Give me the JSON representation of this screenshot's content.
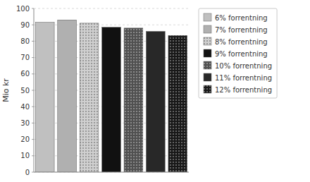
{
  "chart_data": {
    "type": "bar",
    "categories": [
      "6% forrentning",
      "7% forrentning",
      "8% forrentning",
      "9% forrentning",
      "10% forrentning",
      "11% forrentning",
      "12% forrentning"
    ],
    "values": [
      91.5,
      93.0,
      91.0,
      88.5,
      88.0,
      86.0,
      83.5
    ],
    "colors": [
      "#c0c0c0",
      "#b0b0b0",
      "#d0d0d0",
      "#111111",
      "#505050",
      "#282828",
      "#181818"
    ],
    "ylabel": "Mio kr",
    "ylim": [
      0,
      100
    ],
    "yticks": [
      0,
      10,
      20,
      30,
      40,
      50,
      60,
      70,
      80,
      90,
      100
    ],
    "grid": true,
    "legend": "right",
    "tick_labels": "y"
  }
}
